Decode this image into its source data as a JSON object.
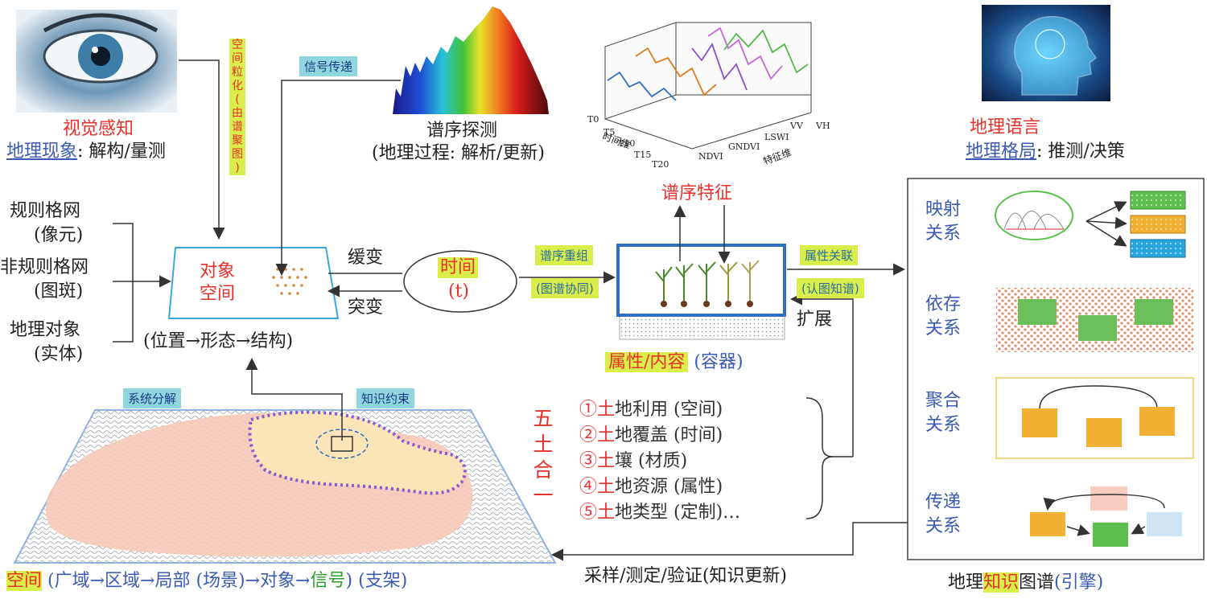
{
  "colors": {
    "red": "#e8312b",
    "blue": "#3b5bb5",
    "tag_yellow": "#d9ee4a",
    "tag_cyan": "#8fd6e0",
    "orange": "#f2b134",
    "green": "#5cbf4e",
    "light_blue": "#2aa6de"
  },
  "vision": {
    "title": "视觉感知",
    "sub_blue": "地理现象",
    "sub_rest": ": 解构/量测"
  },
  "spatial_gran": {
    "chars": [
      "空",
      "间",
      "粒",
      "化",
      "(",
      "由",
      "谱",
      "聚",
      "图",
      ")"
    ]
  },
  "signal": {
    "label": "信号传递"
  },
  "spectrum": {
    "title": "谱序探测",
    "sub": "(地理过程: 解析/更新)"
  },
  "chart3d": {
    "t_labels": [
      "T0",
      "T5",
      "T10",
      "T15",
      "T20"
    ],
    "t_axis": "时间维",
    "feat_labels": [
      "NDVI",
      "GNDVI",
      "LSWI",
      "VV",
      "VH"
    ],
    "feat_axis": "特征维"
  },
  "spec_feature": {
    "label": "谱序特征"
  },
  "geo_lang": {
    "title": "地理语言",
    "sub_blue": "地理格局",
    "sub_rest": ": 推测/决策"
  },
  "inputs": [
    {
      "l1": "规则格网",
      "l2": "(像元)"
    },
    {
      "l1": "非规则格网",
      "l2": "(图斑)"
    },
    {
      "l1": "地理对象",
      "l2": "(实体)"
    }
  ],
  "object_space": {
    "l1": "对象",
    "l2": "空间",
    "caption": "(位置→形态→结构)"
  },
  "slow": "缓变",
  "abrupt": "突变",
  "time": {
    "label": "时间",
    "t": "(t)"
  },
  "spec_recomb": {
    "tag1": "谱序重组",
    "tag2": "(图谱协同)"
  },
  "container": {
    "attr": "属性/内容",
    "cont": "(容器)"
  },
  "attr_link": {
    "tag1": "属性关联",
    "tag2": "(认图知谱)"
  },
  "expand": "扩展",
  "relations": [
    {
      "l1": "映射",
      "l2": "关系"
    },
    {
      "l1": "依存",
      "l2": "关系"
    },
    {
      "l1": "聚合",
      "l2": "关系"
    },
    {
      "l1": "传递",
      "l2": "关系"
    }
  ],
  "kg": {
    "pre": "地理",
    "hl": "知识",
    "post": "图谱",
    "eng": "(引擎)"
  },
  "five_soil": {
    "title": [
      "五",
      "土",
      "合",
      "一"
    ],
    "items": [
      "①土地利用 (空间)",
      "②土地覆盖 (时间)",
      "③土壤 (材质)",
      "④土地资源 (属性)",
      "⑤土地类型 (定制)…"
    ]
  },
  "sys_decomp": "系统分解",
  "know_constr": "知识约束",
  "sampling": "采样/测定/验证(知识更新)",
  "bottom": {
    "space": "空间",
    "p1": "(广域→区域→局部 (场景)→对象→",
    "signal": "信号",
    "p2": ")",
    "frame": "(支架)"
  }
}
